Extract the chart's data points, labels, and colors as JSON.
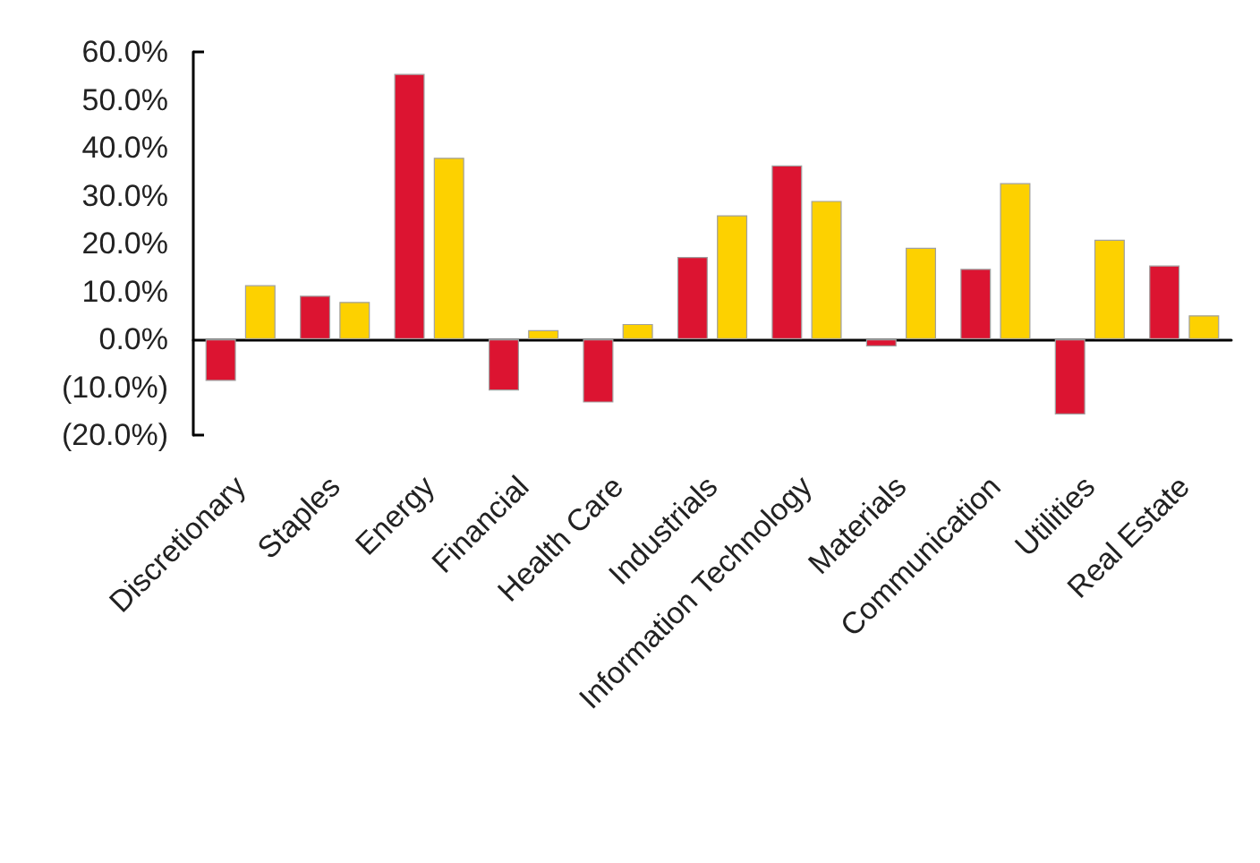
{
  "chart_data": {
    "type": "bar",
    "categories": [
      "Discretionary",
      "Staples",
      "Energy",
      "Financial",
      "Health Care",
      "Industrials",
      "Information Technology",
      "Materials",
      "Communication",
      "Utilities",
      "Real Estate"
    ],
    "series": [
      {
        "color": "#dc1431",
        "values": [
          -8.7,
          9.1,
          55.4,
          -10.7,
          -13.2,
          17.2,
          36.3,
          -1.5,
          14.7,
          -15.7,
          15.4
        ]
      },
      {
        "color": "#fdd100",
        "values": [
          11.3,
          7.8,
          37.9,
          1.9,
          3.2,
          25.9,
          28.9,
          19.1,
          32.6,
          20.8,
          5.0
        ]
      }
    ],
    "ylim": [
      -20,
      60
    ],
    "yticks": [
      {
        "value": -20,
        "label": "(20.0%)"
      },
      {
        "value": -10,
        "label": "(10.0%)"
      },
      {
        "value": 0,
        "label": "0.0%"
      },
      {
        "value": 10,
        "label": "10.0%"
      },
      {
        "value": 20,
        "label": "20.0%"
      },
      {
        "value": 30,
        "label": "30.0%"
      },
      {
        "value": 40,
        "label": "40.0%"
      },
      {
        "value": 50,
        "label": "50.0%"
      },
      {
        "value": 60,
        "label": "60.0%"
      }
    ]
  }
}
